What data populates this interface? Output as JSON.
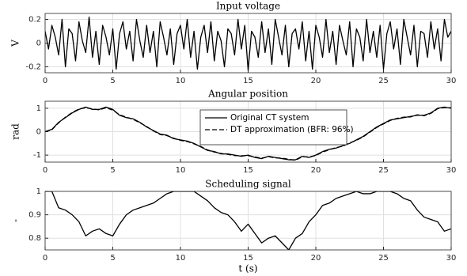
{
  "chart_data": [
    {
      "type": "line",
      "title": "Input voltage",
      "ylabel": "V",
      "grid": true,
      "xlim": [
        0,
        30
      ],
      "xticks": [
        0,
        5,
        10,
        15,
        20,
        25,
        30
      ],
      "ylim": [
        -0.25,
        0.25
      ],
      "yticks": [
        -0.2,
        0,
        0.2
      ],
      "x": [
        0,
        0.25,
        0.5,
        0.75,
        1,
        1.25,
        1.5,
        1.75,
        2,
        2.25,
        2.5,
        2.75,
        3,
        3.25,
        3.5,
        3.75,
        4,
        4.25,
        4.5,
        4.75,
        5,
        5.25,
        5.5,
        5.75,
        6,
        6.25,
        6.5,
        6.75,
        7,
        7.25,
        7.5,
        7.75,
        8,
        8.25,
        8.5,
        8.75,
        9,
        9.25,
        9.5,
        9.75,
        10,
        10.25,
        10.5,
        10.75,
        11,
        11.25,
        11.5,
        11.75,
        12,
        12.25,
        12.5,
        12.75,
        13,
        13.25,
        13.5,
        13.75,
        14,
        14.25,
        14.5,
        14.75,
        15,
        15.25,
        15.5,
        15.75,
        16,
        16.25,
        16.5,
        16.75,
        17,
        17.25,
        17.5,
        17.75,
        18,
        18.25,
        18.5,
        18.75,
        19,
        19.25,
        19.5,
        19.75,
        20,
        20.25,
        20.5,
        20.75,
        21,
        21.25,
        21.5,
        21.75,
        22,
        22.25,
        22.5,
        22.75,
        23,
        23.25,
        23.5,
        23.75,
        24,
        24.25,
        24.5,
        24.75,
        25,
        25.25,
        25.5,
        25.75,
        26,
        26.25,
        26.5,
        26.75,
        27,
        27.25,
        27.5,
        27.75,
        28,
        28.25,
        28.5,
        28.75,
        29,
        29.25,
        29.5,
        29.75,
        30
      ],
      "series": [
        {
          "color": "#000000",
          "linestyle": "solid",
          "values": [
            0.1,
            -0.05,
            0.15,
            0.05,
            -0.1,
            0.2,
            -0.2,
            0.12,
            0.08,
            -0.15,
            0.18,
            0.02,
            -0.08,
            0.22,
            -0.12,
            0.1,
            -0.18,
            0.15,
            0.05,
            -0.1,
            0.12,
            -0.22,
            0.08,
            0.18,
            -0.05,
            0.1,
            -0.15,
            0.2,
            0.02,
            -0.12,
            0.15,
            -0.08,
            0.1,
            -0.2,
            0.18,
            0.05,
            -0.1,
            0.12,
            -0.18,
            0.08,
            0.15,
            -0.05,
            0.2,
            -0.12,
            0.1,
            -0.22,
            0.05,
            0.15,
            -0.08,
            0.18,
            -0.15,
            0.1,
            0.02,
            -0.2,
            0.12,
            0.08,
            -0.1,
            0.2,
            -0.05,
            0.15,
            -0.23,
            0.1,
            0.05,
            -0.12,
            0.18,
            -0.08,
            0.12,
            -0.18,
            0.2,
            0.05,
            -0.1,
            0.15,
            -0.2,
            0.08,
            0.12,
            -0.05,
            0.18,
            -0.15,
            0.1,
            -0.22,
            0.15,
            0.05,
            -0.12,
            0.2,
            -0.08,
            0.1,
            -0.18,
            0.15,
            0.02,
            -0.1,
            0.18,
            -0.2,
            0.12,
            0.05,
            -0.15,
            0.2,
            -0.08,
            0.1,
            -0.12,
            0.15,
            -0.22,
            0.08,
            0.18,
            -0.05,
            0.12,
            -0.18,
            0.2,
            0.05,
            -0.1,
            0.15,
            -0.2,
            0.1,
            0.08,
            -0.12,
            0.18,
            -0.05,
            0.12,
            -0.15,
            0.2,
            0.05,
            0.1
          ]
        }
      ]
    },
    {
      "type": "line",
      "title": "Angular position",
      "ylabel": "rad",
      "grid": true,
      "legend": "upper center",
      "xlim": [
        0,
        30
      ],
      "xticks": [
        0,
        5,
        10,
        15,
        20,
        25,
        30
      ],
      "ylim": [
        -1.3,
        1.3
      ],
      "yticks": [
        -1,
        0,
        1
      ],
      "x": [
        0,
        0.5,
        1,
        1.5,
        2,
        2.5,
        3,
        3.5,
        4,
        4.5,
        5,
        5.5,
        6,
        6.5,
        7,
        7.5,
        8,
        8.5,
        9,
        9.5,
        10,
        10.5,
        11,
        11.5,
        12,
        12.5,
        13,
        13.5,
        14,
        14.5,
        15,
        15.5,
        16,
        16.5,
        17,
        17.5,
        18,
        18.5,
        19,
        19.5,
        20,
        20.5,
        21,
        21.5,
        22,
        22.5,
        23,
        23.5,
        24,
        24.5,
        25,
        25.5,
        26,
        26.5,
        27,
        27.5,
        28,
        28.5,
        29,
        29.5,
        30
      ],
      "series": [
        {
          "name": "Original CT system",
          "color": "#000000",
          "linestyle": "solid",
          "values": [
            0,
            0.1,
            0.4,
            0.6,
            0.8,
            0.95,
            1.05,
            0.95,
            0.95,
            1.05,
            0.95,
            0.7,
            0.6,
            0.55,
            0.4,
            0.2,
            0.05,
            -0.1,
            -0.15,
            -0.3,
            -0.35,
            -0.4,
            -0.5,
            -0.65,
            -0.8,
            -0.85,
            -0.95,
            -0.95,
            -1.0,
            -1.05,
            -1.0,
            -1.1,
            -1.15,
            -1.05,
            -1.1,
            -1.15,
            -1.2,
            -1.2,
            -1.05,
            -1.1,
            -1.0,
            -0.85,
            -0.75,
            -0.7,
            -0.6,
            -0.5,
            -0.35,
            -0.2,
            0,
            0.2,
            0.35,
            0.5,
            0.55,
            0.6,
            0.65,
            0.7,
            0.7,
            0.8,
            1.0,
            1.05,
            1.0
          ]
        },
        {
          "name": "DT approximation (BFR: 96%)",
          "color": "#000000",
          "linestyle": "dashed",
          "values": [
            0,
            0.08,
            0.38,
            0.62,
            0.82,
            0.97,
            1.02,
            0.97,
            0.93,
            1.02,
            0.92,
            0.72,
            0.62,
            0.53,
            0.38,
            0.22,
            0.03,
            -0.12,
            -0.17,
            -0.28,
            -0.37,
            -0.42,
            -0.52,
            -0.63,
            -0.78,
            -0.87,
            -0.93,
            -0.97,
            -1.02,
            -1.03,
            -1.02,
            -1.08,
            -1.13,
            -1.07,
            -1.12,
            -1.13,
            -1.18,
            -1.22,
            -1.07,
            -1.08,
            -1.02,
            -0.87,
            -0.77,
            -0.68,
            -0.62,
            -0.48,
            -0.37,
            -0.22,
            -0.02,
            0.18,
            0.33,
            0.48,
            0.57,
            0.62,
            0.63,
            0.72,
            0.68,
            0.78,
            0.98,
            1.03,
            1.02
          ]
        }
      ]
    },
    {
      "type": "line",
      "title": "Scheduling signal",
      "ylabel": "-",
      "xlabel": "t (s)",
      "grid": true,
      "xlim": [
        0,
        30
      ],
      "xticks": [
        0,
        5,
        10,
        15,
        20,
        25,
        30
      ],
      "ylim": [
        0.75,
        1.0
      ],
      "yticks": [
        0.8,
        0.9,
        1
      ],
      "x": [
        0,
        0.5,
        1,
        1.5,
        2,
        2.5,
        3,
        3.5,
        4,
        4.5,
        5,
        5.5,
        6,
        6.5,
        7,
        7.5,
        8,
        8.5,
        9,
        9.5,
        10,
        10.5,
        11,
        11.5,
        12,
        12.5,
        13,
        13.5,
        14,
        14.5,
        15,
        15.5,
        16,
        16.5,
        17,
        17.5,
        18,
        18.5,
        19,
        19.5,
        20,
        20.5,
        21,
        21.5,
        22,
        22.5,
        23,
        23.5,
        24,
        24.5,
        25,
        25.5,
        26,
        26.5,
        27,
        27.5,
        28,
        28.5,
        29,
        29.5,
        30
      ],
      "series": [
        {
          "color": "#000000",
          "linestyle": "solid",
          "values": [
            1,
            1,
            0.93,
            0.92,
            0.9,
            0.87,
            0.81,
            0.83,
            0.84,
            0.82,
            0.81,
            0.86,
            0.9,
            0.92,
            0.93,
            0.94,
            0.95,
            0.97,
            0.99,
            1,
            1,
            1,
            1,
            0.98,
            0.96,
            0.93,
            0.91,
            0.9,
            0.87,
            0.83,
            0.86,
            0.82,
            0.78,
            0.8,
            0.81,
            0.78,
            0.75,
            0.8,
            0.82,
            0.87,
            0.9,
            0.94,
            0.95,
            0.97,
            0.98,
            0.99,
            1,
            0.99,
            0.99,
            1,
            1,
            1,
            0.99,
            0.97,
            0.96,
            0.92,
            0.89,
            0.88,
            0.87,
            0.83,
            0.84
          ]
        }
      ]
    }
  ]
}
